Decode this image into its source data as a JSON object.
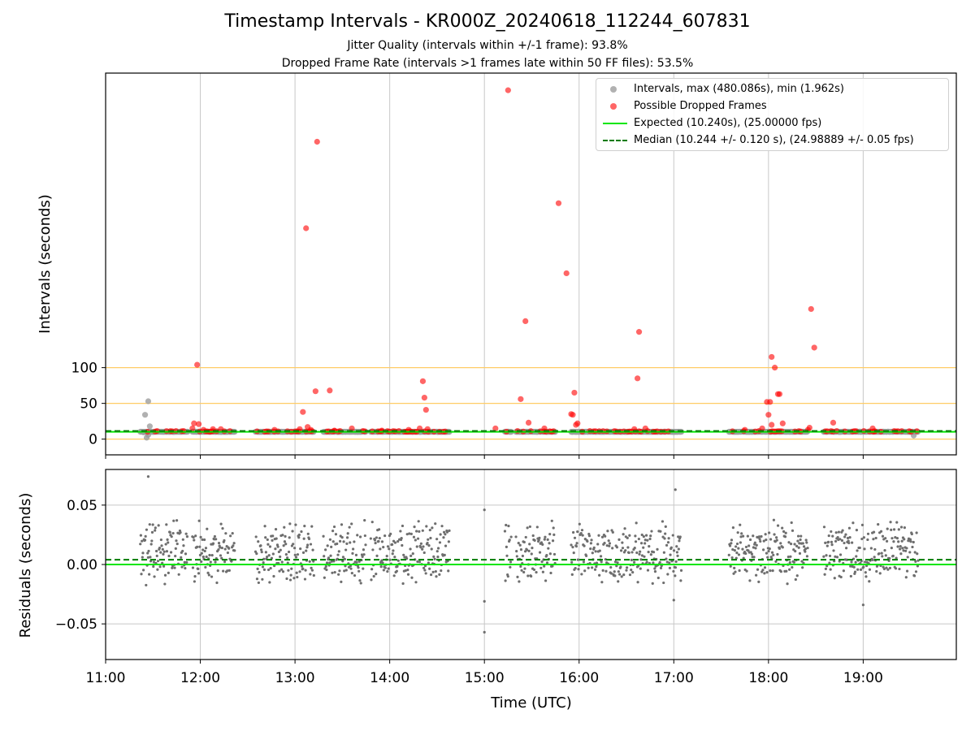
{
  "title": "Timestamp Intervals - KR000Z_20240618_112244_607831",
  "subtitle_1": "Jitter Quality (intervals within +/-1 frame): 93.8%",
  "subtitle_2": "Dropped Frame Rate (intervals >1 frames late within 50 FF files): 53.5%",
  "colors": {
    "intervals": "#9e9e9e",
    "dropped": "#ff0000",
    "expected": "#00e600",
    "median": "#007a00",
    "guide": "#ffcc66",
    "grid": "#c8c8c8",
    "residual": "#6e6e6e"
  },
  "chart_data": [
    {
      "id": "intervals",
      "type": "scatter",
      "ylabel": "Intervals (seconds)",
      "xlim": [
        "11:00",
        "19:59"
      ],
      "ylim": [
        -22,
        512
      ],
      "yticks": [
        0,
        50,
        100
      ],
      "guide_lines_y": [
        0,
        50,
        100
      ],
      "grid_x": true,
      "legend_position": "top-right",
      "legend": [
        "Intervals, max (480.086s), min (1.962s)",
        "Possible Dropped Frames",
        "Expected (10.240s), (25.00000 fps)",
        "Median (10.244 +/- 0.120 s), (24.98889 +/- 0.05 fps)"
      ],
      "expected_interval": 10.24,
      "median_interval": 10.244,
      "series": [
        {
          "name": "Intervals, max (480.086s), min (1.962s)",
          "segments": [
            [
              "11:22",
              "11:52"
            ],
            [
              "11:55",
              "12:22"
            ],
            [
              "12:35",
              "13:12"
            ],
            [
              "13:18",
              "13:45"
            ],
            [
              "13:48",
              "14:15"
            ],
            [
              "14:15",
              "14:38"
            ],
            [
              "15:13",
              "15:17"
            ],
            [
              "15:20",
              "15:45"
            ],
            [
              "15:55",
              "16:40"
            ],
            [
              "16:40",
              "17:05"
            ],
            [
              "17:35",
              "18:25"
            ],
            [
              "18:35",
              "18:45"
            ],
            [
              "18:45",
              "19:35"
            ]
          ],
          "typical_value": 10.24,
          "points": [
            {
              "x": "11:24",
              "y": 9.5
            },
            {
              "x": "11:25",
              "y": 34
            },
            {
              "x": "11:26",
              "y": 2
            },
            {
              "x": "11:27",
              "y": 53
            },
            {
              "x": "11:28",
              "y": 18
            },
            {
              "x": "11:27",
              "y": 6
            },
            {
              "x": "19:32",
              "y": 5
            }
          ]
        },
        {
          "name": "Possible Dropped Frames",
          "points": [
            {
              "x": "11:58",
              "y": 104
            },
            {
              "x": "11:56",
              "y": 22
            },
            {
              "x": "11:59",
              "y": 21
            },
            {
              "x": "11:55",
              "y": 15
            },
            {
              "x": "12:02",
              "y": 13
            },
            {
              "x": "12:08",
              "y": 14
            },
            {
              "x": "12:13",
              "y": 14
            },
            {
              "x": "12:47",
              "y": 13
            },
            {
              "x": "13:03",
              "y": 14
            },
            {
              "x": "13:05",
              "y": 38
            },
            {
              "x": "13:08",
              "y": 17
            },
            {
              "x": "13:10",
              "y": 13
            },
            {
              "x": "13:07",
              "y": 295
            },
            {
              "x": "13:13",
              "y": 67
            },
            {
              "x": "13:14",
              "y": 416
            },
            {
              "x": "13:22",
              "y": 68
            },
            {
              "x": "13:25",
              "y": 12
            },
            {
              "x": "13:36",
              "y": 15
            },
            {
              "x": "13:55",
              "y": 12
            },
            {
              "x": "14:12",
              "y": 13
            },
            {
              "x": "14:19",
              "y": 15
            },
            {
              "x": "14:21",
              "y": 81
            },
            {
              "x": "14:22",
              "y": 58
            },
            {
              "x": "14:23",
              "y": 41
            },
            {
              "x": "14:24",
              "y": 14
            },
            {
              "x": "15:07",
              "y": 15
            },
            {
              "x": "15:15",
              "y": 488
            },
            {
              "x": "15:23",
              "y": 56
            },
            {
              "x": "15:26",
              "y": 165
            },
            {
              "x": "15:28",
              "y": 23
            },
            {
              "x": "15:38",
              "y": 15
            },
            {
              "x": "15:47",
              "y": 330
            },
            {
              "x": "15:52",
              "y": 232
            },
            {
              "x": "15:55",
              "y": 35
            },
            {
              "x": "15:56",
              "y": 34
            },
            {
              "x": "15:57",
              "y": 65
            },
            {
              "x": "15:58",
              "y": 20
            },
            {
              "x": "15:59",
              "y": 22
            },
            {
              "x": "16:37",
              "y": 85
            },
            {
              "x": "16:38",
              "y": 150
            },
            {
              "x": "16:35",
              "y": 14
            },
            {
              "x": "16:42",
              "y": 15
            },
            {
              "x": "17:45",
              "y": 13
            },
            {
              "x": "17:56",
              "y": 15
            },
            {
              "x": "17:59",
              "y": 52
            },
            {
              "x": "18:00",
              "y": 34
            },
            {
              "x": "18:01",
              "y": 52
            },
            {
              "x": "18:02",
              "y": 115
            },
            {
              "x": "18:04",
              "y": 100
            },
            {
              "x": "18:06",
              "y": 63
            },
            {
              "x": "18:07",
              "y": 63
            },
            {
              "x": "18:09",
              "y": 22
            },
            {
              "x": "18:02",
              "y": 20
            },
            {
              "x": "18:25",
              "y": 13
            },
            {
              "x": "18:27",
              "y": 182
            },
            {
              "x": "18:29",
              "y": 128
            },
            {
              "x": "18:26",
              "y": 16
            },
            {
              "x": "18:41",
              "y": 23
            },
            {
              "x": "19:06",
              "y": 15
            },
            {
              "x": "19:07",
              "y": 11
            }
          ]
        },
        {
          "name": "Expected (10.240s), (25.00000 fps)",
          "y": 10.24
        },
        {
          "name": "Median (10.244 +/- 0.120 s), (24.98889 +/- 0.05 fps)",
          "y": 10.244
        }
      ]
    },
    {
      "id": "residuals",
      "type": "scatter",
      "xlabel": "Time (UTC)",
      "ylabel": "Residuals (seconds)",
      "xlim": [
        "11:00",
        "19:59"
      ],
      "ylim": [
        -0.08,
        0.08
      ],
      "yticks": [
        0.05,
        0.0,
        -0.05
      ],
      "ytick_labels": [
        "0.05",
        "0.00",
        "−0.05"
      ],
      "xticks": [
        "11:00",
        "12:00",
        "13:00",
        "14:00",
        "15:00",
        "16:00",
        "17:00",
        "18:00",
        "19:00"
      ],
      "grid": true,
      "expected_residual": 0.0,
      "median_residual": 0.004,
      "residual_band": {
        "main": 0.0,
        "upper": 0.02,
        "spread": 0.012
      },
      "outliers": [
        {
          "x": "11:27",
          "y": 0.074
        },
        {
          "x": "17:01",
          "y": 0.063
        },
        {
          "x": "15:00",
          "y": 0.046
        },
        {
          "x": "15:00",
          "y": -0.031
        },
        {
          "x": "15:00",
          "y": -0.057
        },
        {
          "x": "17:00",
          "y": -0.03
        },
        {
          "x": "19:00",
          "y": -0.034
        }
      ]
    }
  ]
}
